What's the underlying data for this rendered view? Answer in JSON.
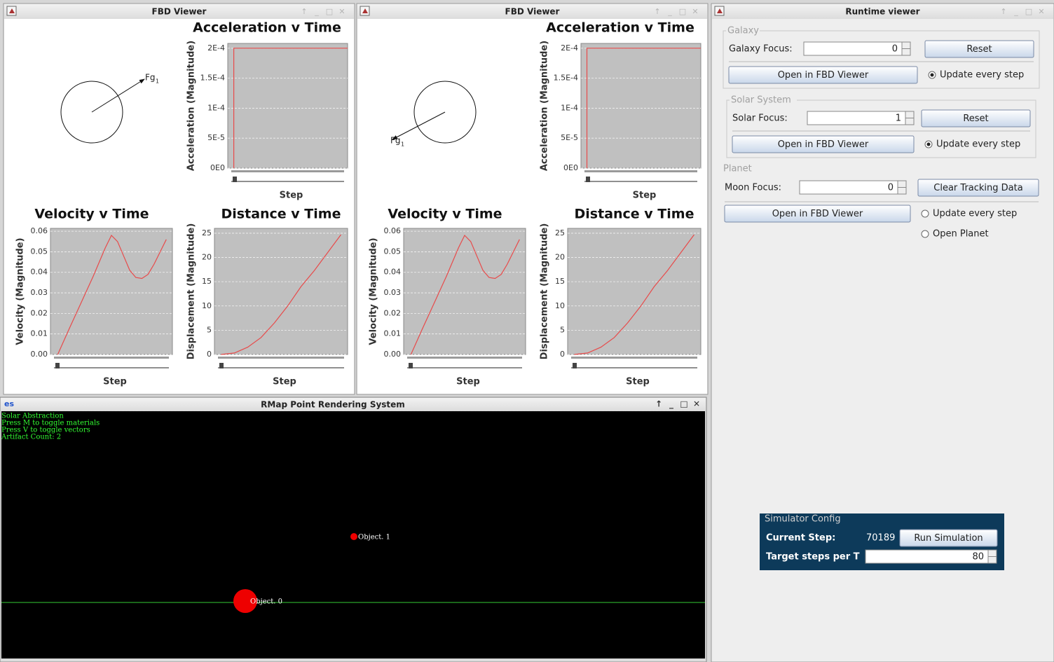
{
  "fbd_viewers": [
    {
      "title": "FBD Viewer",
      "force_label": "Fg",
      "force_index": "1",
      "charts": [
        {
          "type": "line",
          "title": "Acceleration v Time",
          "ylabel": "Acceleration (Magnitude)",
          "xlabel": "Step",
          "color": "#e84a4a",
          "xlim": [
            0,
            100
          ],
          "ylim": [
            0,
            0.000208
          ],
          "yticks": [
            {
              "value": 0,
              "label": "0E0"
            },
            {
              "value": 5e-05,
              "label": "5E-5"
            },
            {
              "value": 0.0001,
              "label": "1E-4"
            },
            {
              "value": 0.00015,
              "label": "1.5E-4"
            },
            {
              "value": 0.0002,
              "label": "2E-4"
            }
          ],
          "x": [
            5,
            5,
            100
          ],
          "values": [
            0,
            0.0002,
            0.0002
          ]
        },
        {
          "type": "line",
          "title": "Velocity v Time",
          "ylabel": "Velocity (Magnitude)",
          "xlabel": "Step",
          "color": "#e84a4a",
          "xlim": [
            0,
            100
          ],
          "ylim": [
            0,
            0.0614
          ],
          "yticks": [
            {
              "value": 0,
              "label": "0.00"
            },
            0.01,
            0.02,
            0.03,
            0.04,
            0.05,
            0.06
          ],
          "x": [
            6,
            15,
            25,
            35,
            45,
            50,
            55,
            60,
            65,
            70,
            75,
            80,
            85,
            90,
            95
          ],
          "values": [
            0,
            0.012,
            0.025,
            0.038,
            0.052,
            0.058,
            0.055,
            0.048,
            0.041,
            0.0375,
            0.037,
            0.039,
            0.044,
            0.05,
            0.056
          ]
        },
        {
          "type": "line",
          "title": "Distance v Time",
          "ylabel": "Displacement (Magnitude)",
          "xlabel": "Step",
          "color": "#e84a4a",
          "xlim": [
            0,
            100
          ],
          "ylim": [
            0,
            26
          ],
          "yticks": [
            0,
            5,
            10,
            15,
            20,
            25
          ],
          "x": [
            5,
            15,
            25,
            35,
            45,
            55,
            65,
            75,
            85,
            95
          ],
          "values": [
            0,
            0.3,
            1.5,
            3.5,
            6.5,
            10,
            14,
            17.3,
            21,
            24.7
          ]
        }
      ]
    },
    {
      "title": "FBD Viewer",
      "force_label": "Fg",
      "force_index": "1",
      "charts": [
        {
          "type": "line",
          "title": "Acceleration v Time",
          "ylabel": "Acceleration (Magnitude)",
          "xlabel": "Step",
          "color": "#e84a4a",
          "xlim": [
            0,
            100
          ],
          "ylim": [
            0,
            0.000208
          ],
          "yticks": [
            {
              "value": 0,
              "label": "0E0"
            },
            {
              "value": 5e-05,
              "label": "5E-5"
            },
            {
              "value": 0.0001,
              "label": "1E-4"
            },
            {
              "value": 0.00015,
              "label": "1.5E-4"
            },
            {
              "value": 0.0002,
              "label": "2E-4"
            }
          ],
          "x": [
            5,
            5,
            100
          ],
          "values": [
            0,
            0.0002,
            0.0002
          ]
        },
        {
          "type": "line",
          "title": "Velocity v Time",
          "ylabel": "Velocity (Magnitude)",
          "xlabel": "Step",
          "color": "#e84a4a",
          "xlim": [
            0,
            100
          ],
          "ylim": [
            0,
            0.0614
          ],
          "yticks": [
            {
              "value": 0,
              "label": "0.00"
            },
            0.01,
            0.02,
            0.03,
            0.04,
            0.05,
            0.06
          ],
          "x": [
            6,
            15,
            25,
            35,
            45,
            50,
            55,
            60,
            65,
            70,
            75,
            80,
            85,
            90,
            95
          ],
          "values": [
            0,
            0.012,
            0.025,
            0.038,
            0.052,
            0.058,
            0.055,
            0.048,
            0.041,
            0.0375,
            0.037,
            0.039,
            0.044,
            0.05,
            0.056
          ]
        },
        {
          "type": "line",
          "title": "Distance v Time",
          "ylabel": "Displacement (Magnitude)",
          "xlabel": "Step",
          "color": "#e84a4a",
          "xlim": [
            0,
            100
          ],
          "ylim": [
            0,
            26
          ],
          "yticks": [
            0,
            5,
            10,
            15,
            20,
            25
          ],
          "x": [
            5,
            15,
            25,
            35,
            45,
            55,
            65,
            75,
            85,
            95
          ],
          "values": [
            0,
            0.3,
            1.5,
            3.5,
            6.5,
            10,
            14,
            17.3,
            21,
            24.7
          ]
        }
      ]
    }
  ],
  "runtime_viewer": {
    "title": "Runtime viewer",
    "galaxy": {
      "group": "Galaxy",
      "focus_label": "Galaxy Focus:",
      "focus_value": 0,
      "reset": "Reset",
      "open": "Open in FBD Viewer",
      "update": "Update every step"
    },
    "solar": {
      "group": "Solar System",
      "focus_label": "Solar Focus:",
      "focus_value": 1,
      "reset": "Reset",
      "open": "Open in FBD Viewer",
      "update": "Update every step"
    },
    "planet": {
      "group": "Planet",
      "focus_label": "Moon Focus:",
      "focus_value": 0,
      "clear": "Clear Tracking Data",
      "open": "Open in FBD Viewer",
      "update": "Update every step",
      "open_planet": "Open Planet"
    },
    "simulator": {
      "title": "Simulator Config",
      "step_label": "Current Step:",
      "step_value": 70189,
      "run": "Run Simulation",
      "target_label": "Target steps per T",
      "target_value": 80
    }
  },
  "rmap": {
    "title": "RMap Point Rendering System",
    "hud": [
      "Solar Abstraction",
      "Press M to toggle materials",
      "Press V to toggle vectors",
      "Artifact Count: 2"
    ],
    "objects": [
      "Object. 1",
      "Object. 0"
    ]
  }
}
